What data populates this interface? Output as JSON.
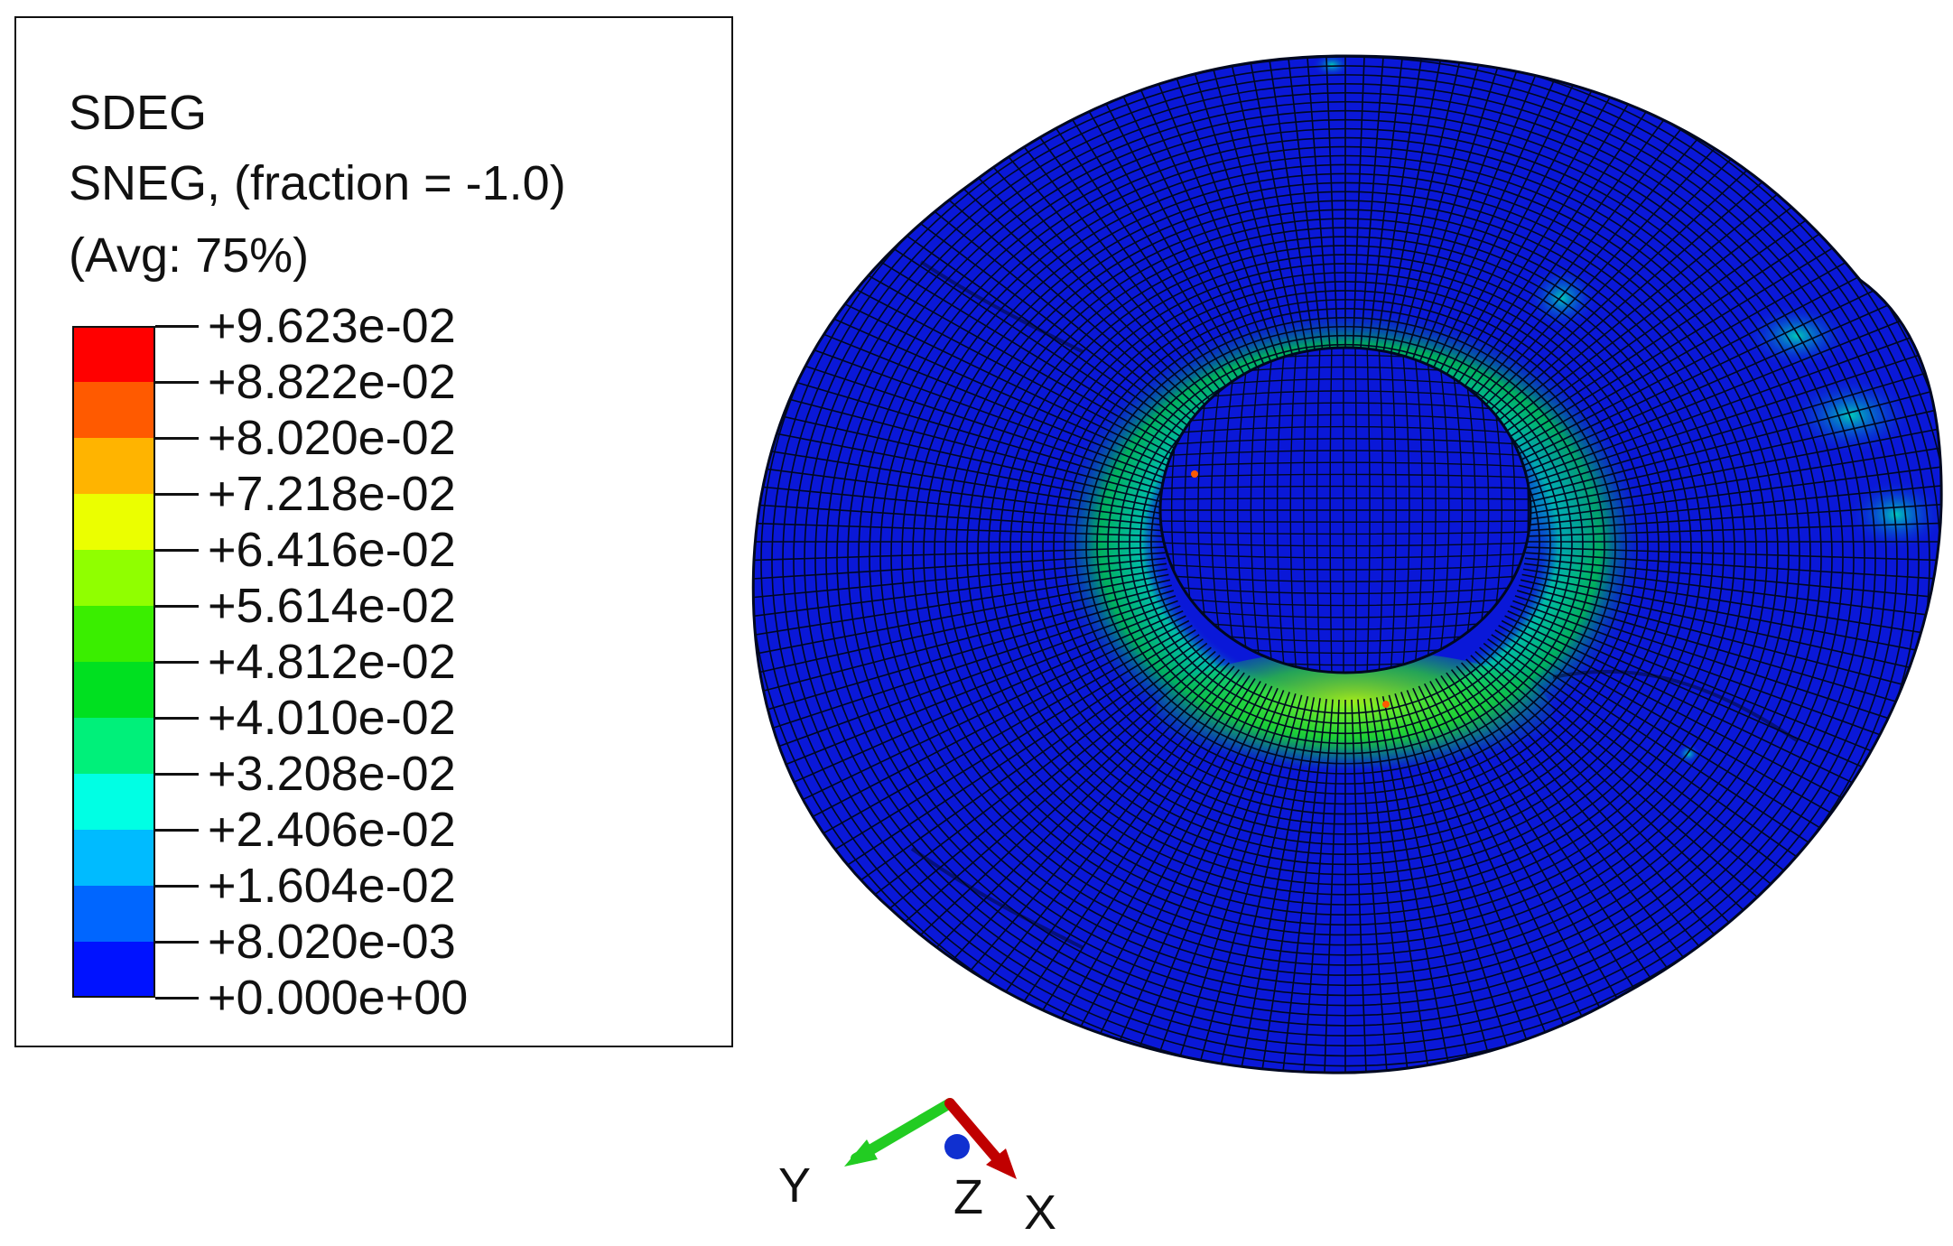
{
  "legend": {
    "variable": "SDEG",
    "section": "SNEG, (fraction = -1.0)",
    "averaging": "(Avg: 75%)",
    "bands": [
      {
        "label": "+9.623e-02",
        "color": "#ff0000"
      },
      {
        "label": "+8.822e-02",
        "color": "#ff5a00"
      },
      {
        "label": "+8.020e-02",
        "color": "#ffb400"
      },
      {
        "label": "+7.218e-02",
        "color": "#ebff00"
      },
      {
        "label": "+6.416e-02",
        "color": "#90ff00"
      },
      {
        "label": "+5.614e-02",
        "color": "#3aee00"
      },
      {
        "label": "+4.812e-02",
        "color": "#00e020"
      },
      {
        "label": "+4.010e-02",
        "color": "#00f07a"
      },
      {
        "label": "+3.208e-02",
        "color": "#00ffe4"
      },
      {
        "label": "+2.406e-02",
        "color": "#00bbff"
      },
      {
        "label": "+1.604e-02",
        "color": "#0066ff"
      },
      {
        "label": "+8.020e-03",
        "color": "#0012ff"
      }
    ],
    "min_label": "+0.000e+00"
  },
  "triad": {
    "y_label": "Y",
    "z_label": "Z",
    "x_label": "X",
    "colors": {
      "x": "#c00000",
      "y": "#22cc22",
      "z": "#1030d0"
    }
  },
  "model": {
    "base_color": "#0a18d8",
    "mesh_color": "#000820"
  }
}
